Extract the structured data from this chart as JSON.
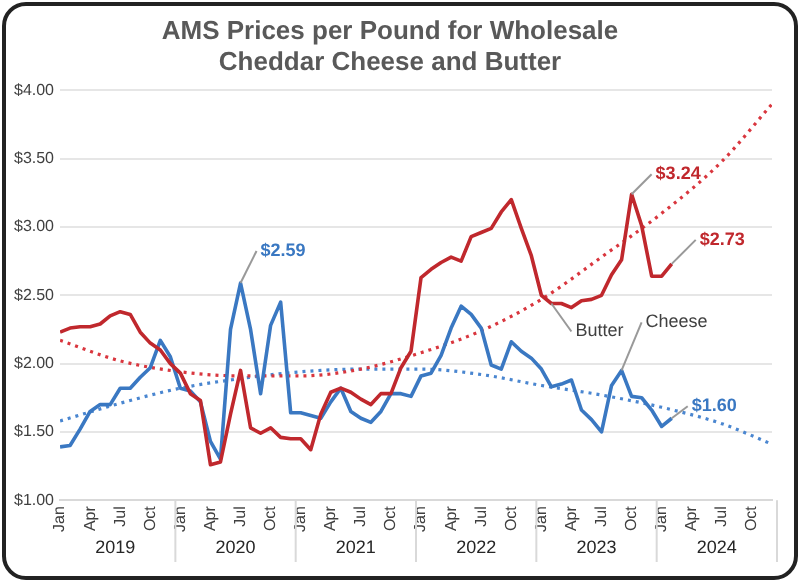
{
  "chart_data": {
    "type": "line",
    "title": "AMS Prices per Pound for Wholesale\nCheddar Cheese and Butter",
    "x": [
      "2019-01",
      "2019-02",
      "2019-03",
      "2019-04",
      "2019-05",
      "2019-06",
      "2019-07",
      "2019-08",
      "2019-09",
      "2019-10",
      "2019-11",
      "2019-12",
      "2020-01",
      "2020-02",
      "2020-03",
      "2020-04",
      "2020-05",
      "2020-06",
      "2020-07",
      "2020-08",
      "2020-09",
      "2020-10",
      "2020-11",
      "2020-12",
      "2021-01",
      "2021-02",
      "2021-03",
      "2021-04",
      "2021-05",
      "2021-06",
      "2021-07",
      "2021-08",
      "2021-09",
      "2021-10",
      "2021-11",
      "2021-12",
      "2022-01",
      "2022-02",
      "2022-03",
      "2022-04",
      "2022-05",
      "2022-06",
      "2022-07",
      "2022-08",
      "2022-09",
      "2022-10",
      "2022-11",
      "2022-12",
      "2023-01",
      "2023-02",
      "2023-03",
      "2023-04",
      "2023-05",
      "2023-06",
      "2023-07",
      "2023-08",
      "2023-09",
      "2023-10",
      "2023-11",
      "2023-12",
      "2024-01",
      "2024-02"
    ],
    "series": [
      {
        "color": "#c0282d",
        "values": [
          2.23,
          2.26,
          2.27,
          2.27,
          2.29,
          2.35,
          2.38,
          2.36,
          2.23,
          2.15,
          2.1,
          2.0,
          1.93,
          1.78,
          1.73,
          1.26,
          1.28,
          1.63,
          1.95,
          1.53,
          1.49,
          1.53,
          1.46,
          1.45,
          1.45,
          1.37,
          1.63,
          1.79,
          1.82,
          1.79,
          1.74,
          1.7,
          1.78,
          1.78,
          1.97,
          2.09,
          2.63,
          2.69,
          2.74,
          2.78,
          2.75,
          2.93,
          2.96,
          2.99,
          3.11,
          3.2,
          2.99,
          2.79,
          2.5,
          2.44,
          2.44,
          2.41,
          2.46,
          2.47,
          2.5,
          2.65,
          2.76,
          3.24,
          3.01,
          2.64,
          2.64,
          2.73
        ]
      },
      {
        "color": "#3a78c2",
        "values": [
          1.39,
          1.4,
          1.52,
          1.65,
          1.7,
          1.7,
          1.82,
          1.82,
          1.9,
          1.97,
          2.17,
          2.05,
          1.82,
          1.8,
          1.72,
          1.43,
          1.3,
          2.25,
          2.59,
          2.25,
          1.78,
          2.28,
          2.45,
          1.64,
          1.64,
          1.62,
          1.6,
          1.72,
          1.82,
          1.65,
          1.6,
          1.57,
          1.65,
          1.78,
          1.78,
          1.76,
          1.91,
          1.93,
          2.06,
          2.26,
          2.42,
          2.36,
          2.26,
          1.99,
          1.96,
          2.16,
          2.09,
          2.04,
          1.96,
          1.83,
          1.85,
          1.88,
          1.66,
          1.59,
          1.5,
          1.84,
          1.95,
          1.76,
          1.75,
          1.66,
          1.54,
          1.6
        ]
      },
      {
        "type": "line",
        "line_style": "dotted",
        "color": "#d9363e",
        "x": [
          "2019-01",
          "2019-07",
          "2020-01",
          "2020-07",
          "2021-01",
          "2021-07",
          "2022-01",
          "2022-07",
          "2023-01",
          "2023-07",
          "2024-01",
          "2024-07",
          "2024-12"
        ],
        "values": [
          2.17,
          2.02,
          1.94,
          1.91,
          1.91,
          1.96,
          2.08,
          2.24,
          2.47,
          2.78,
          3.1,
          3.48,
          3.9
        ]
      },
      {
        "type": "line",
        "line_style": "dotted",
        "color": "#4a86d0",
        "x": [
          "2019-01",
          "2019-07",
          "2020-01",
          "2020-07",
          "2021-01",
          "2021-07",
          "2022-01",
          "2022-07",
          "2023-01",
          "2023-07",
          "2024-01",
          "2024-07",
          "2024-12"
        ],
        "values": [
          1.58,
          1.71,
          1.82,
          1.89,
          1.94,
          1.96,
          1.96,
          1.92,
          1.84,
          1.77,
          1.68,
          1.56,
          1.41
        ]
      }
    ],
    "xlim": [
      "2019-01",
      "2024-12"
    ],
    "xticks": [
      {
        "value": "2019-01",
        "label": "Jan"
      },
      {
        "value": "2019-04",
        "label": "Apr"
      },
      {
        "value": "2019-07",
        "label": "Jul"
      },
      {
        "value": "2019-10",
        "label": "Oct"
      },
      {
        "value": "2020-01",
        "label": "Jan"
      },
      {
        "value": "2020-04",
        "label": "Apr"
      },
      {
        "value": "2020-07",
        "label": "Jul"
      },
      {
        "value": "2020-10",
        "label": "Oct"
      },
      {
        "value": "2021-01",
        "label": "Jan"
      },
      {
        "value": "2021-04",
        "label": "Apr"
      },
      {
        "value": "2021-07",
        "label": "Jul"
      },
      {
        "value": "2021-10",
        "label": "Oct"
      },
      {
        "value": "2022-01",
        "label": "Jan"
      },
      {
        "value": "2022-04",
        "label": "Apr"
      },
      {
        "value": "2022-07",
        "label": "Jul"
      },
      {
        "value": "2022-10",
        "label": "Oct"
      },
      {
        "value": "2023-01",
        "label": "Jan"
      },
      {
        "value": "2023-04",
        "label": "Apr"
      },
      {
        "value": "2023-07",
        "label": "Jul"
      },
      {
        "value": "2023-10",
        "label": "Oct"
      },
      {
        "value": "2024-01",
        "label": "Jan"
      },
      {
        "value": "2024-04",
        "label": "Apr"
      },
      {
        "value": "2024-07",
        "label": "Jul"
      },
      {
        "value": "2024-10",
        "label": "Oct"
      }
    ],
    "ylim": [
      1,
      4
    ],
    "yticks": [
      {
        "value": 1,
        "label": "$1.00"
      },
      {
        "value": 1.5,
        "label": "$1.50"
      },
      {
        "value": 2,
        "label": "$2.00"
      },
      {
        "value": 2.5,
        "label": "$2.50"
      },
      {
        "value": 3,
        "label": "$3.00"
      },
      {
        "value": 3.5,
        "label": "$3.50"
      },
      {
        "value": 4,
        "label": "$4.00"
      }
    ],
    "grid": "y",
    "legend": false,
    "marker": "none",
    "line_style": "solid",
    "annotations": [
      {
        "text": "$2.59",
        "x": "2020-07",
        "y": 2.59
      },
      {
        "text": "$3.24",
        "x": "2023-10",
        "y": 3.24
      },
      {
        "text": "$2.73",
        "x": "2024-02",
        "y": 2.73
      },
      {
        "text": "$1.60",
        "x": "2024-02",
        "y": 1.6
      },
      {
        "text": "Butter",
        "x": "2023-02",
        "y": 2.44
      },
      {
        "text": "Cheese",
        "x": "2023-09",
        "y": 1.95
      },
      "2019",
      "2020",
      "2021",
      "2022",
      "2023",
      "2024"
    ]
  }
}
